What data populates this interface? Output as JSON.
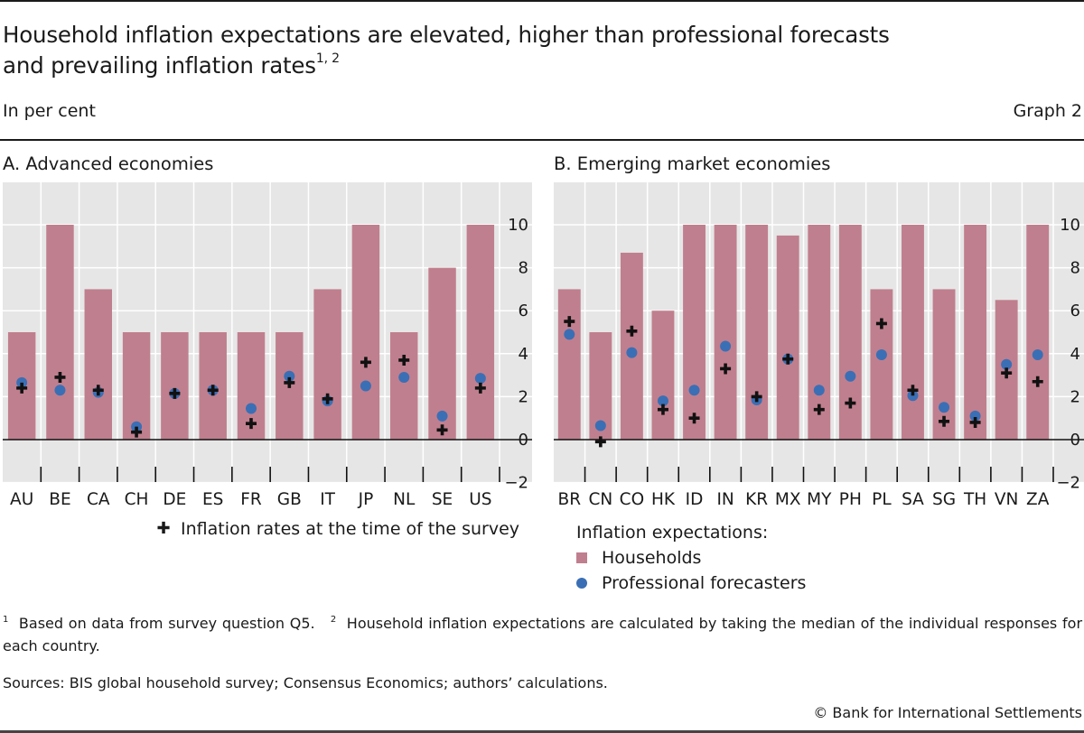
{
  "header": {
    "title_line1": "Household inflation expectations are elevated, higher than professional forecasts",
    "title_line2": "and prevailing inflation rates",
    "title_footnote_refs": "1, 2",
    "unit": "In per cent",
    "graph_number": "Graph 2"
  },
  "legend": {
    "inflation_rates_label": "Inflation rates at the time of the survey",
    "expectations_heading": "Inflation expectations:",
    "households_label": "Households",
    "professionals_label": "Professional forecasters"
  },
  "colors": {
    "households": "#c07f8e",
    "professionals": "#3a6fb5",
    "inflation": "#111111",
    "panel_background": "#e6e6e6"
  },
  "footnotes": {
    "note1_marker": "1",
    "note1_text": "Based on data from survey question Q5.",
    "note2_marker": "2",
    "note2_text": "Household inflation expectations are calculated by taking the median of the individual responses for each country.",
    "sources": "Sources: BIS global household survey; Consensus Economics; authors’ calculations.",
    "copyright": "© Bank for International Settlements"
  },
  "chart_data": [
    {
      "type": "bar",
      "title": "A. Advanced economies",
      "xlabel": "",
      "ylabel": "In per cent",
      "ylim": [
        -2,
        12
      ],
      "yticks": [
        -2,
        0,
        2,
        4,
        6,
        8,
        10
      ],
      "grid": true,
      "y_axis_side": "right",
      "categories": [
        "AU",
        "BE",
        "CA",
        "CH",
        "DE",
        "ES",
        "FR",
        "GB",
        "IT",
        "JP",
        "NL",
        "SE",
        "US"
      ],
      "series": [
        {
          "name": "Households",
          "kind": "bar",
          "values": [
            5,
            10,
            7,
            5,
            5,
            5,
            5,
            5,
            7,
            10,
            5,
            8,
            10
          ]
        },
        {
          "name": "Professional forecasters",
          "kind": "dot",
          "values": [
            2.65,
            2.3,
            2.2,
            0.6,
            2.15,
            2.3,
            1.45,
            2.95,
            1.8,
            2.5,
            2.9,
            1.1,
            2.85
          ]
        },
        {
          "name": "Inflation rates at the time of the survey",
          "kind": "plus",
          "values": [
            2.4,
            2.9,
            2.3,
            0.35,
            2.15,
            2.3,
            0.75,
            2.65,
            1.9,
            3.6,
            3.7,
            0.45,
            2.4
          ]
        }
      ]
    },
    {
      "type": "bar",
      "title": "B. Emerging market economies",
      "xlabel": "",
      "ylabel": "In per cent",
      "ylim": [
        -2,
        12
      ],
      "yticks": [
        -2,
        0,
        2,
        4,
        6,
        8,
        10
      ],
      "grid": true,
      "y_axis_side": "right",
      "categories": [
        "BR",
        "CN",
        "CO",
        "HK",
        "ID",
        "IN",
        "KR",
        "MX",
        "MY",
        "PH",
        "PL",
        "SA",
        "SG",
        "TH",
        "VN",
        "ZA"
      ],
      "series": [
        {
          "name": "Households",
          "kind": "bar",
          "values": [
            7,
            5,
            8.7,
            6,
            10,
            10,
            10,
            9.5,
            10,
            10,
            7,
            10,
            7,
            10,
            6.5,
            10
          ]
        },
        {
          "name": "Professional forecasters",
          "kind": "dot",
          "values": [
            4.9,
            0.65,
            4.05,
            1.8,
            2.3,
            4.35,
            1.85,
            3.75,
            2.3,
            2.95,
            3.95,
            2.05,
            1.5,
            1.1,
            3.5,
            3.95
          ]
        },
        {
          "name": "Inflation rates at the time of the survey",
          "kind": "plus",
          "values": [
            5.5,
            -0.1,
            5.05,
            1.4,
            1.0,
            3.3,
            2.0,
            3.75,
            1.4,
            1.7,
            5.4,
            2.3,
            0.85,
            0.8,
            3.1,
            2.7
          ]
        }
      ]
    }
  ]
}
